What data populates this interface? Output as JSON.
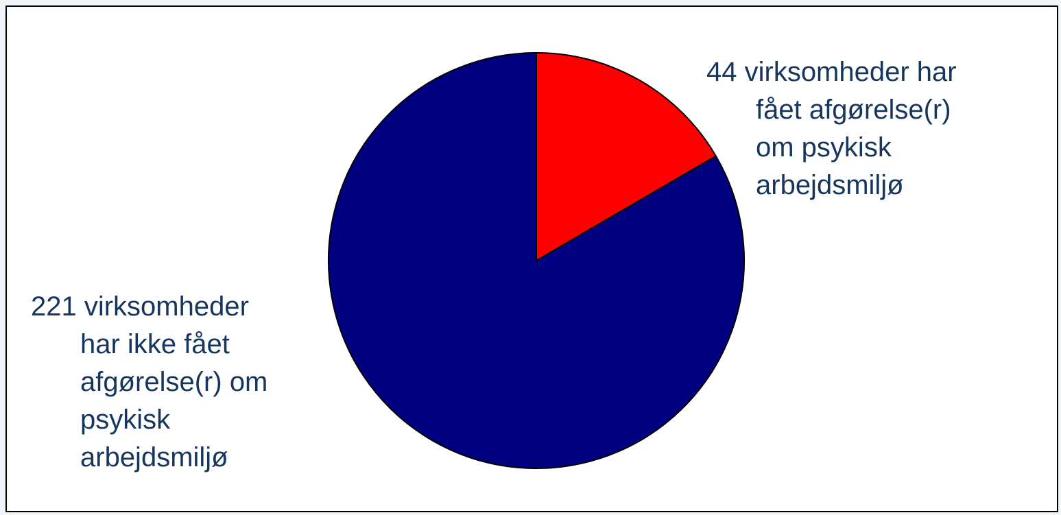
{
  "chart_data": {
    "type": "pie",
    "title": "",
    "slices": [
      {
        "value": 44,
        "color": "#ff0000",
        "label_lines": [
          "44 virksomheder har",
          "fået afgørelse(r)",
          "om psykisk",
          "arbejdsmiljø"
        ]
      },
      {
        "value": 221,
        "color": "#000080",
        "label_lines": [
          "221 virksomheder",
          "har ikke fået",
          "afgørelse(r) om",
          "psykisk",
          "arbejdsmiljø"
        ]
      }
    ],
    "start_angle_deg": 0,
    "direction": "clockwise",
    "edge_color": "#000000",
    "label_color": "#17365d"
  }
}
